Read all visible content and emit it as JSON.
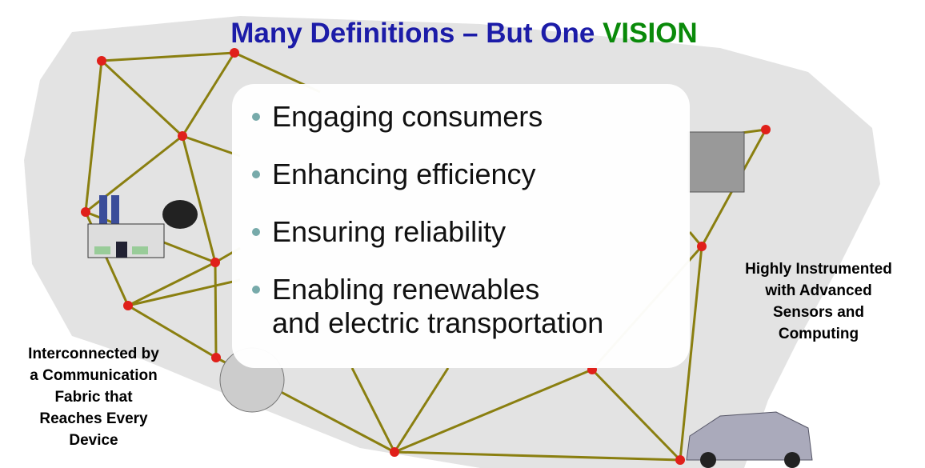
{
  "title": {
    "main": "Many Definitions – But One",
    "accent": "VISION"
  },
  "bullets": [
    [
      "Engaging consumers"
    ],
    [
      "Enhancing efficiency"
    ],
    [
      "Ensuring reliability"
    ],
    [
      "Enabling renewables",
      "and electric transportation"
    ]
  ],
  "left_caption": [
    "Interconnected by",
    "a Communication",
    "Fabric that",
    "Reaches Every",
    "Device"
  ],
  "right_caption": [
    "Highly Instrumented",
    "with Advanced",
    "Sensors and",
    "Computing"
  ]
}
